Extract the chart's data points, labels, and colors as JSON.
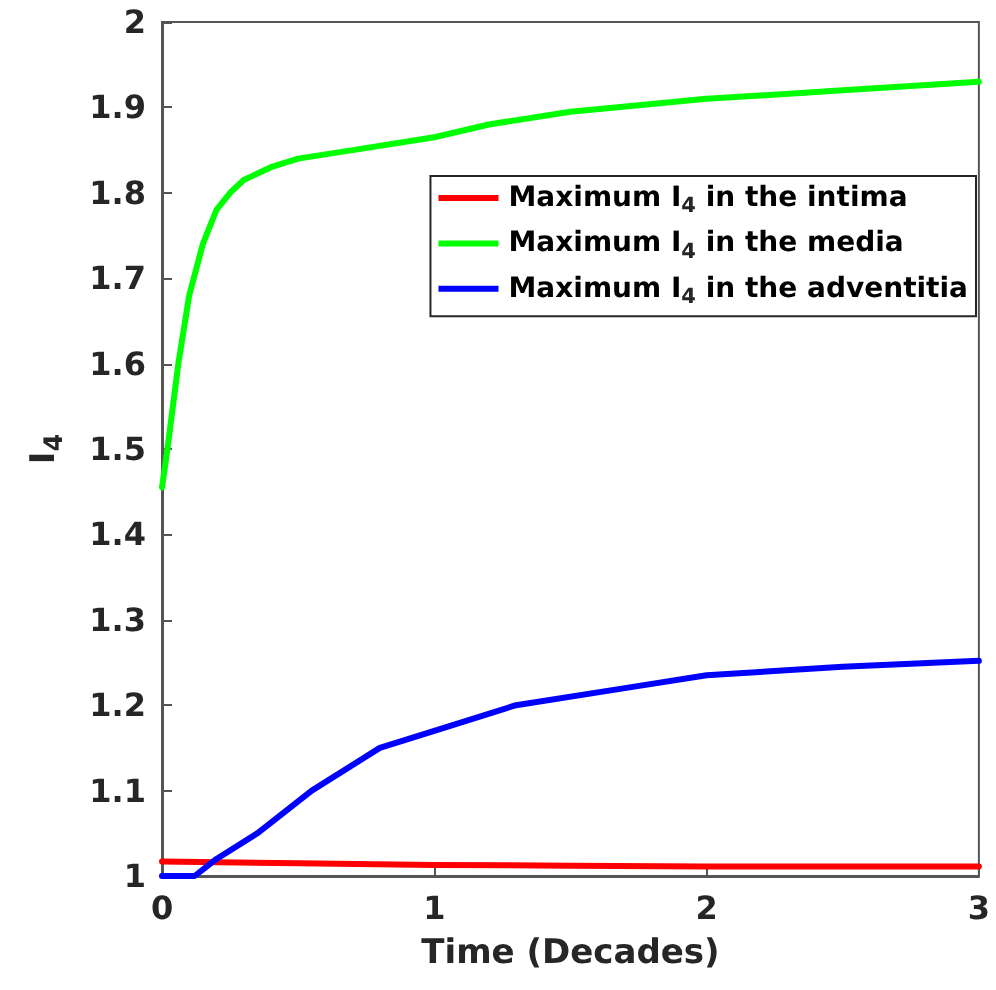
{
  "chart_data": {
    "type": "line",
    "xlabel": "Time (Decades)",
    "ylabel": "I$_{4}$",
    "xlim": [
      0,
      3
    ],
    "xticks": [
      0,
      1,
      2,
      3
    ],
    "ylim": [
      1,
      2
    ],
    "yticks": [
      1,
      1.1,
      1.2,
      1.3,
      1.4,
      1.5,
      1.6,
      1.7,
      1.8,
      1.9,
      2
    ],
    "grid": false,
    "legend": "top right",
    "marker": "none",
    "line_style": "solid",
    "series": [
      {
        "name": "Maximum I$_{4}$ in the intima",
        "color": "#ff0000",
        "x": [
          0,
          0.5,
          1,
          1.5,
          2,
          2.5,
          3
        ],
        "values": [
          1.017,
          1.015,
          1.013,
          1.012,
          1.011,
          1.011,
          1.011
        ]
      },
      {
        "name": "Maximum I$_{4}$ in the media",
        "color": "#00ff00",
        "x": [
          0,
          0.02,
          0.06,
          0.1,
          0.15,
          0.2,
          0.25,
          0.3,
          0.4,
          0.5,
          0.7,
          1,
          1.2,
          1.5,
          2,
          2.5,
          3
        ],
        "values": [
          1.455,
          1.5,
          1.6,
          1.68,
          1.74,
          1.78,
          1.8,
          1.815,
          1.83,
          1.84,
          1.85,
          1.865,
          1.88,
          1.895,
          1.91,
          1.92,
          1.93
        ]
      },
      {
        "name": "Maximum I$_{4}$ in the adventitia",
        "color": "#0000ff",
        "x": [
          0,
          0.12,
          0.2,
          0.35,
          0.55,
          0.8,
          1,
          1.3,
          1.7,
          2,
          2.5,
          3
        ],
        "values": [
          1,
          1,
          1.02,
          1.05,
          1.1,
          1.15,
          1.17,
          1.2,
          1.22,
          1.235,
          1.245,
          1.252
        ]
      }
    ]
  }
}
